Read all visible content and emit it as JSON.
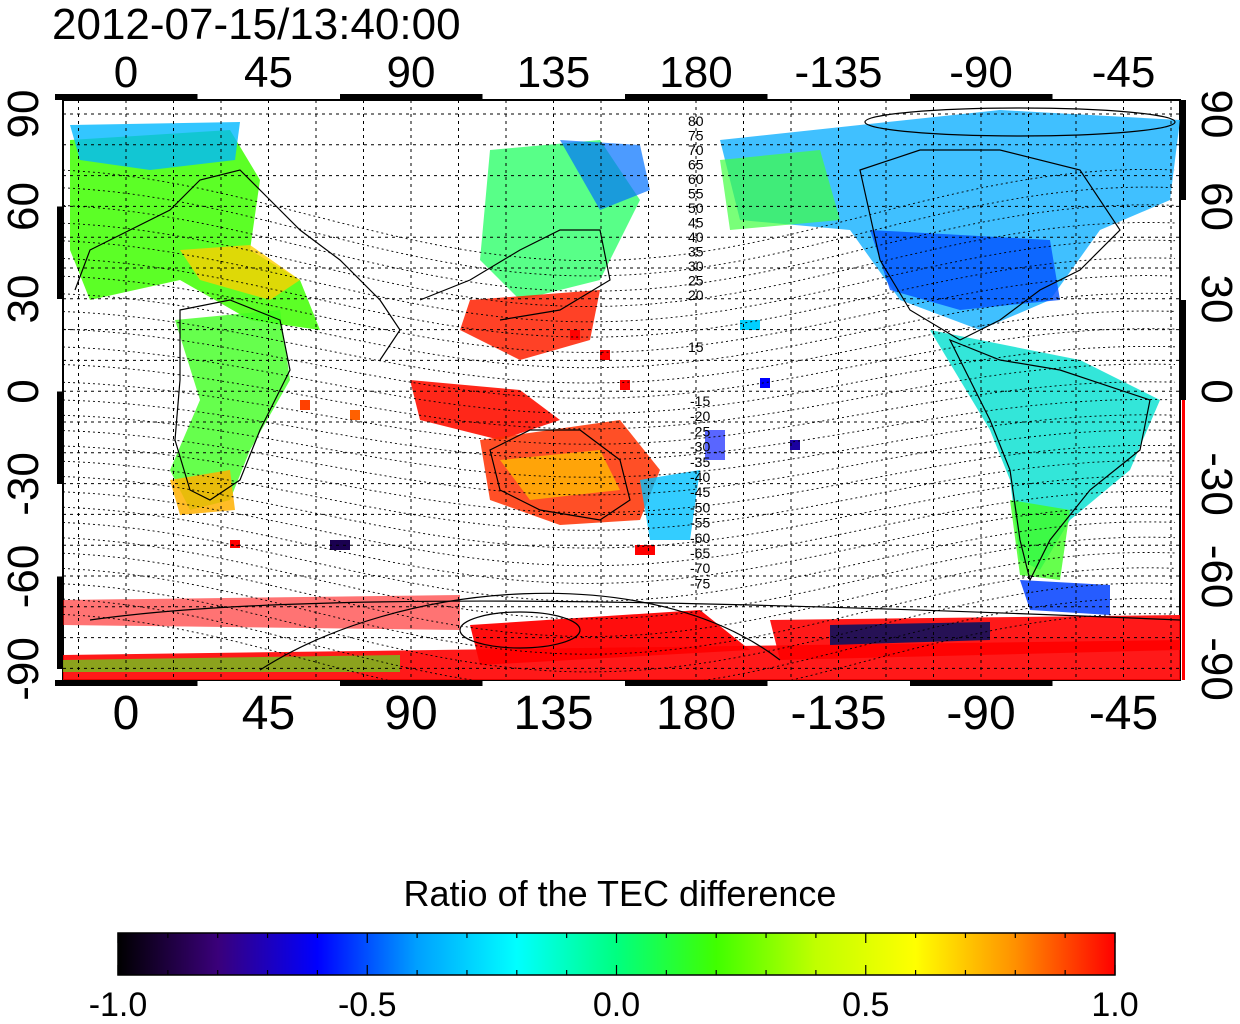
{
  "title": "2012-07-15/13:40:00",
  "top_axis_labels": [
    "0",
    "45",
    "90",
    "135",
    "180",
    "-135",
    "-90",
    "-45"
  ],
  "bottom_axis_labels": [
    "0",
    "45",
    "90",
    "135",
    "180",
    "-135",
    "-90",
    "-45"
  ],
  "left_axis_labels": [
    "90",
    "60",
    "30",
    "0",
    "-30",
    "-60",
    "-90"
  ],
  "right_axis_labels": [
    "90",
    "60",
    "30",
    "0",
    "-30",
    "-60",
    "-90"
  ],
  "contour_labels_north": [
    "80",
    "75",
    "70",
    "65",
    "60",
    "55",
    "50",
    "45",
    "40",
    "35",
    "30",
    "25",
    "20",
    "15"
  ],
  "contour_labels_south": [
    "-15",
    "-20",
    "-25",
    "-30",
    "-35",
    "-40",
    "-45",
    "-50",
    "-55",
    "-60",
    "-65",
    "-70",
    "-75"
  ],
  "colorbar": {
    "title": "Ratio of the TEC difference",
    "min": -1.0,
    "max": 1.0,
    "tick_labels": [
      "-1.0",
      "-0.5",
      "0.0",
      "0.5",
      "1.0"
    ],
    "colors": [
      "#000000",
      "#3a007a",
      "#0000ff",
      "#00a0ff",
      "#00ffff",
      "#00ff80",
      "#40ff00",
      "#c0ff00",
      "#ffff00",
      "#ff9000",
      "#ff0000"
    ]
  }
}
